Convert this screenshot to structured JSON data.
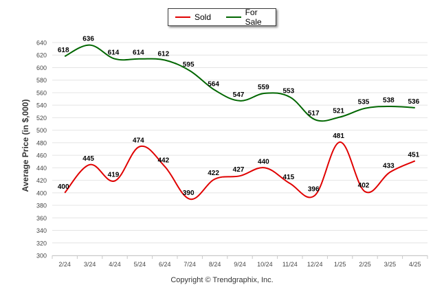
{
  "chart_data": {
    "type": "line",
    "categories": [
      "2/24",
      "3/24",
      "4/24",
      "5/24",
      "6/24",
      "7/24",
      "8/24",
      "9/24",
      "10/24",
      "11/24",
      "12/24",
      "1/25",
      "2/25",
      "3/25",
      "4/25"
    ],
    "series": [
      {
        "name": "Sold",
        "color": "#e00000",
        "values": [
          400,
          445,
          419,
          474,
          442,
          390,
          422,
          427,
          440,
          415,
          396,
          481,
          402,
          433,
          451
        ]
      },
      {
        "name": "For Sale",
        "color": "#006600",
        "values": [
          618,
          636,
          614,
          614,
          612,
          595,
          564,
          547,
          559,
          553,
          517,
          521,
          535,
          538,
          536
        ]
      }
    ],
    "ylabel": "Average Price (in $,000)",
    "ylim": [
      300,
      640
    ],
    "yticks": [
      300,
      320,
      340,
      360,
      380,
      400,
      420,
      440,
      460,
      480,
      500,
      520,
      540,
      560,
      580,
      600,
      620,
      640
    ],
    "grid": true,
    "legend": "top-center"
  },
  "legend": {
    "sold_label": "Sold",
    "forsale_label": "For Sale"
  },
  "copyright": "Copyright © Trendgraphix, Inc."
}
